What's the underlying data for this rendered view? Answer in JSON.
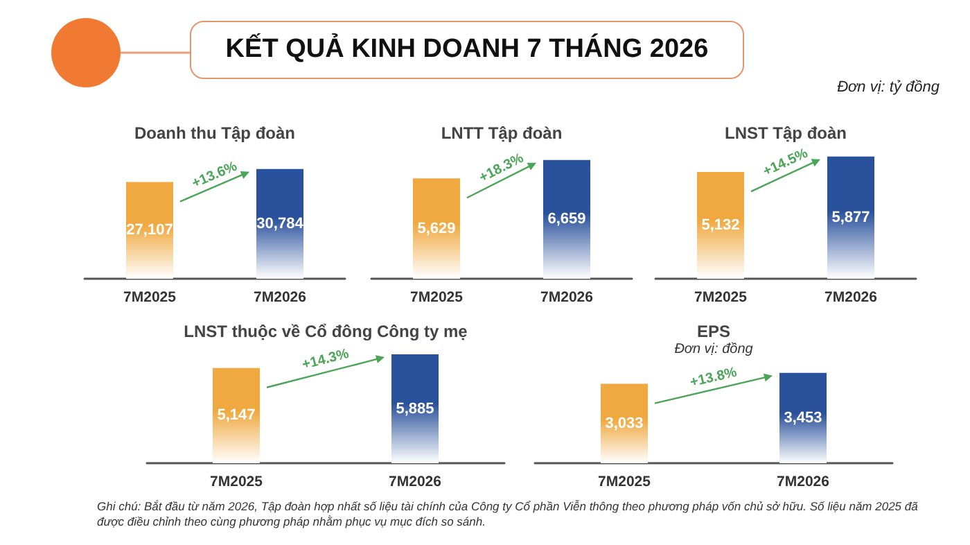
{
  "chart_data": [
    {
      "type": "other",
      "title": "KẾT QUẢ KINH DOANH 7 THÁNG 2026",
      "annotations": [
        "Đơn vị: tỷ đồng"
      ]
    },
    {
      "type": "bar",
      "title": "Doanh thu Tập đoàn",
      "categories": [
        "7M2025",
        "7M2026"
      ],
      "values": [
        27107,
        30784
      ],
      "colors": [
        "#f0a940",
        "#2a519c"
      ],
      "value_labels": [
        "27,107",
        "30,784"
      ],
      "annotations": [
        "+13.6%"
      ]
    },
    {
      "type": "bar",
      "title": "LNTT Tập đoàn",
      "categories": [
        "7M2025",
        "7M2026"
      ],
      "values": [
        5629,
        6659
      ],
      "colors": [
        "#f0a940",
        "#2a519c"
      ],
      "value_labels": [
        "5,629",
        "6,659"
      ],
      "annotations": [
        "+18.3%"
      ]
    },
    {
      "type": "bar",
      "title": "LNST Tập đoàn",
      "categories": [
        "7M2025",
        "7M2026"
      ],
      "values": [
        5132,
        5877
      ],
      "colors": [
        "#f0a940",
        "#2a519c"
      ],
      "value_labels": [
        "5,132",
        "5,877"
      ],
      "annotations": [
        "+14.5%"
      ]
    },
    {
      "type": "bar",
      "title": "LNST thuộc về Cổ đông Công ty mẹ",
      "categories": [
        "7M2025",
        "7M2026"
      ],
      "values": [
        5147,
        5885
      ],
      "colors": [
        "#f0a940",
        "#2a519c"
      ],
      "value_labels": [
        "5,147",
        "5,885"
      ],
      "annotations": [
        "+14.3%"
      ]
    },
    {
      "type": "bar",
      "title": "EPS",
      "subtitle": "Đơn vị: đồng",
      "categories": [
        "7M2025",
        "7M2026"
      ],
      "values": [
        3033,
        3453
      ],
      "colors": [
        "#f0a940",
        "#2a519c"
      ],
      "value_labels": [
        "3,033",
        "3,453"
      ],
      "annotations": [
        "+13.8%"
      ]
    },
    {
      "type": "other",
      "annotations": [
        "Ghi chú: Bắt đầu từ năm 2026, Tập đoàn hợp nhất số liệu tài chính của Công ty Cổ phần Viễn thông theo phương pháp vốn chủ sở hữu. Số liệu năm 2025 đã được điều chỉnh theo cùng phương pháp nhằm phục vụ mục đích so sánh."
      ]
    }
  ]
}
